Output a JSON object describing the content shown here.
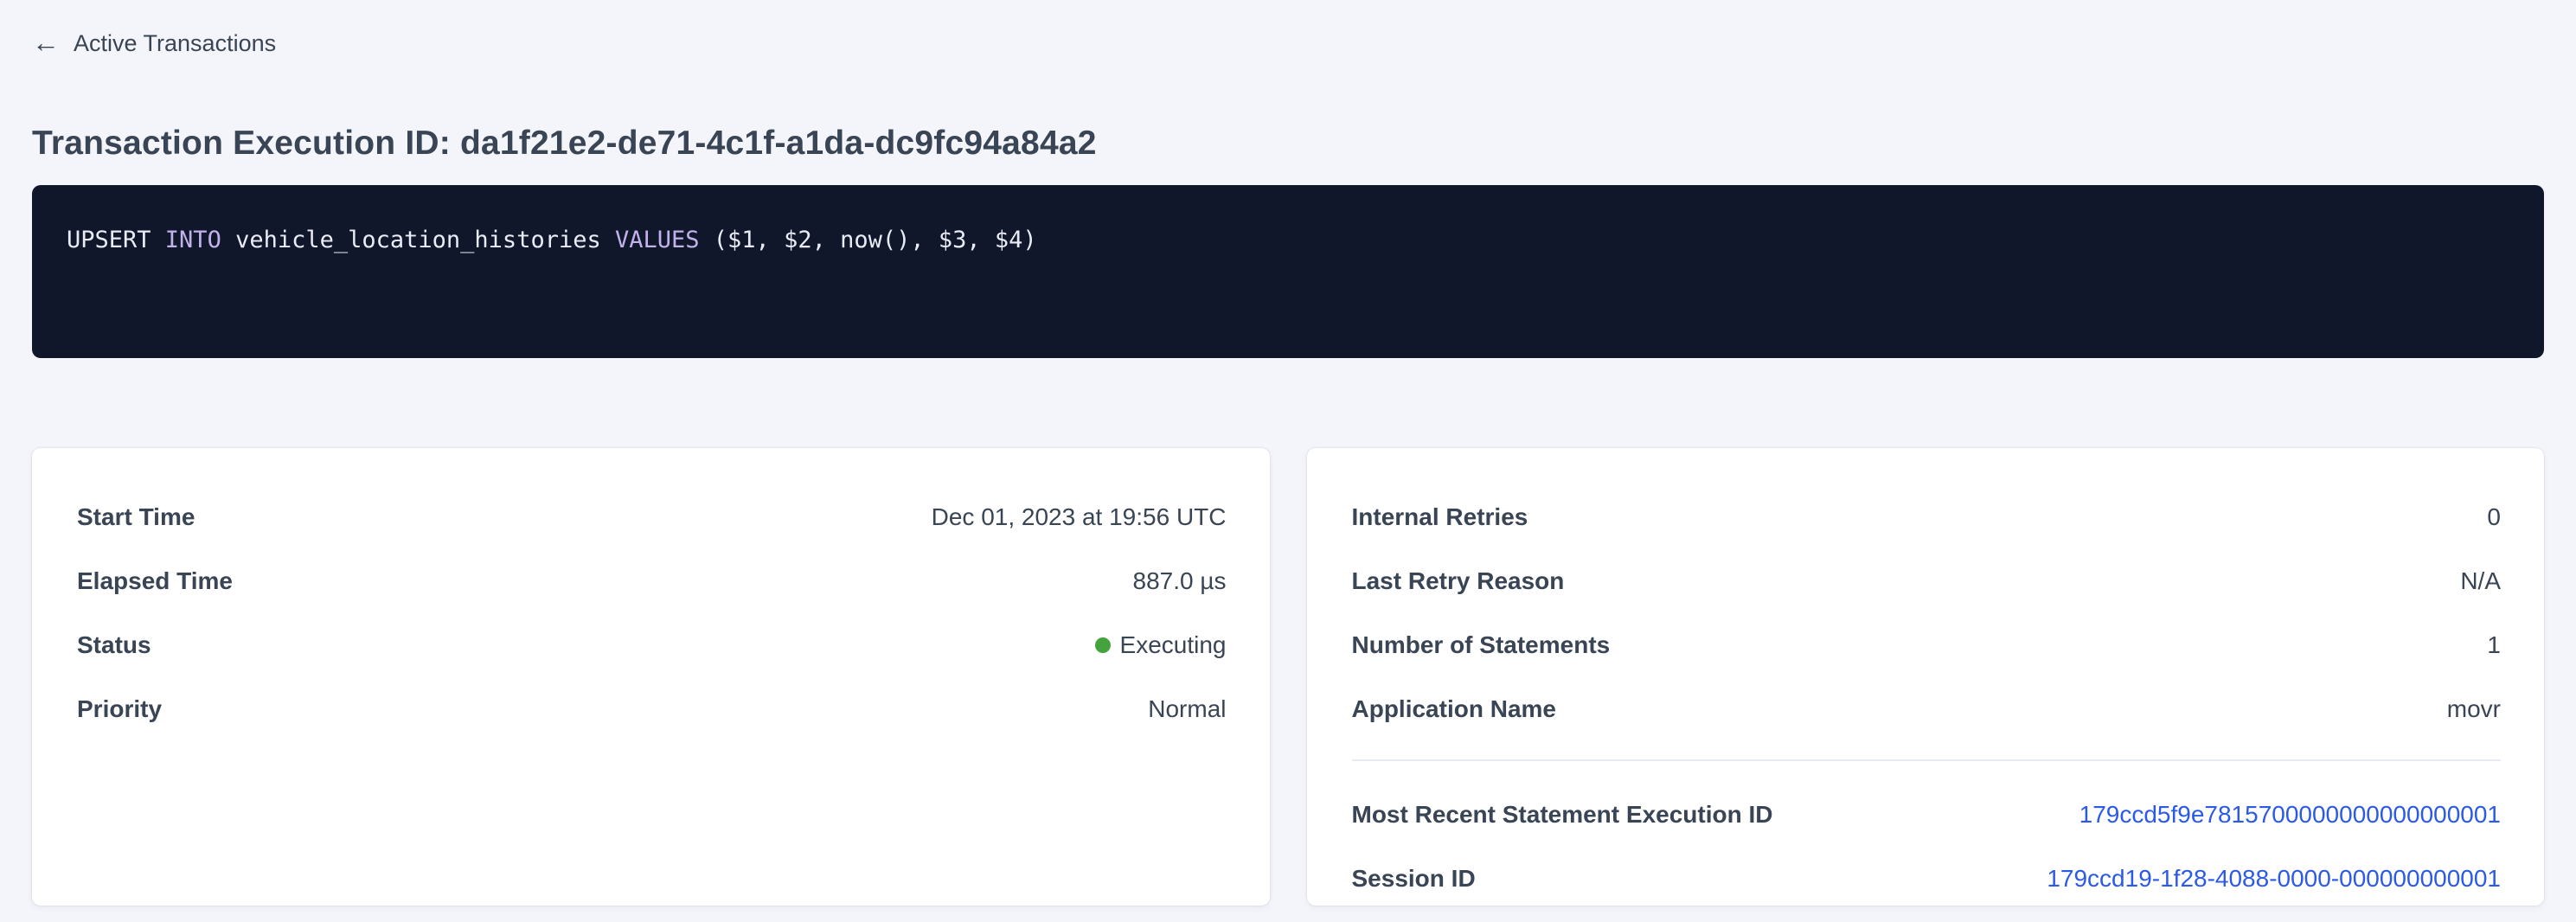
{
  "colors": {
    "link_blue": "#2b59e8",
    "status_green": "#44a33d",
    "sql_keyword": "#c2b2ec",
    "sql_plain": "#eaecf5",
    "sql_background": "#11172b"
  },
  "back_link": {
    "icon": "arrow-left",
    "arrow_glyph": "←",
    "label": "Active Transactions"
  },
  "page": {
    "title": "Transaction Execution ID: da1f21e2-de71-4c1f-a1da-dc9fc94a84a2"
  },
  "sql": {
    "tokens": [
      {
        "text": "UPSERT ",
        "type": "plain"
      },
      {
        "text": "INTO",
        "type": "keyword"
      },
      {
        "text": " vehicle_location_histories ",
        "type": "plain"
      },
      {
        "text": "VALUES",
        "type": "keyword"
      },
      {
        "text": " ($1, $2, now(), $3, $4)",
        "type": "plain"
      }
    ],
    "full_statement": "UPSERT INTO vehicle_location_histories VALUES ($1, $2, now(), $3, $4)"
  },
  "cards": {
    "left": {
      "rows": [
        {
          "label": "Start Time",
          "value": "Dec 01, 2023 at 19:56 UTC"
        },
        {
          "label": "Elapsed Time",
          "value": "887.0 µs"
        },
        {
          "label": "Status",
          "value": "Executing",
          "status": "executing"
        },
        {
          "label": "Priority",
          "value": "Normal"
        }
      ]
    },
    "right": {
      "rows": [
        {
          "label": "Internal Retries",
          "value": "0"
        },
        {
          "label": "Last Retry Reason",
          "value": "N/A"
        },
        {
          "label": "Number of Statements",
          "value": "1"
        },
        {
          "label": "Application Name",
          "value": "movr"
        }
      ],
      "link_rows": [
        {
          "label": "Most Recent Statement Execution ID",
          "value": "179ccd5f9e7815700000000000000001"
        },
        {
          "label": "Session ID",
          "value": "179ccd19-1f28-4088-0000-000000000001"
        }
      ]
    }
  }
}
